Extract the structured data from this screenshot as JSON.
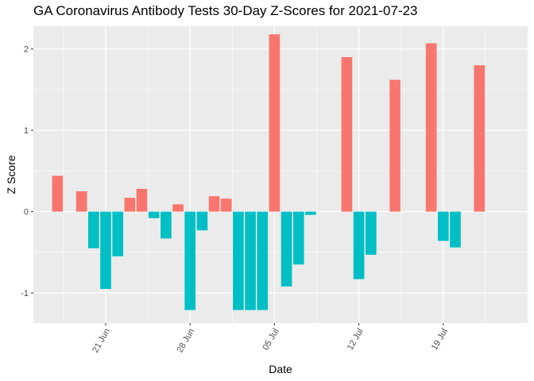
{
  "chart_data": {
    "type": "bar",
    "title": "GA Coronavirus Antibody Tests 30-Day Z-Scores for 2021-07-23",
    "xlabel": "Date",
    "ylabel": "Z Score",
    "x_type": "date",
    "xlim": [
      "2021-06-15",
      "2021-07-26"
    ],
    "ylim": [
      -1.37,
      2.28
    ],
    "grid": true,
    "legend": "none",
    "x_ticks": [
      {
        "value": "2021-06-21",
        "label": "21 Jun"
      },
      {
        "value": "2021-06-28",
        "label": "28 Jun"
      },
      {
        "value": "2021-07-05",
        "label": "05 Jul"
      },
      {
        "value": "2021-07-12",
        "label": "12 Jul"
      },
      {
        "value": "2021-07-19",
        "label": "19 Jul"
      }
    ],
    "y_ticks": [
      -1,
      0,
      1,
      2
    ],
    "colors": {
      "positive": "#F8766D",
      "negative": "#00BFC4"
    },
    "points": [
      {
        "date": "2021-06-17",
        "z": 0.44
      },
      {
        "date": "2021-06-19",
        "z": 0.25
      },
      {
        "date": "2021-06-20",
        "z": -0.45
      },
      {
        "date": "2021-06-21",
        "z": -0.95
      },
      {
        "date": "2021-06-22",
        "z": -0.55
      },
      {
        "date": "2021-06-23",
        "z": 0.17
      },
      {
        "date": "2021-06-24",
        "z": 0.28
      },
      {
        "date": "2021-06-25",
        "z": -0.08
      },
      {
        "date": "2021-06-26",
        "z": -0.33
      },
      {
        "date": "2021-06-27",
        "z": 0.09
      },
      {
        "date": "2021-06-28",
        "z": -1.21
      },
      {
        "date": "2021-06-29",
        "z": -0.23
      },
      {
        "date": "2021-06-30",
        "z": 0.19
      },
      {
        "date": "2021-07-01",
        "z": 0.16
      },
      {
        "date": "2021-07-02",
        "z": -1.21
      },
      {
        "date": "2021-07-03",
        "z": -1.21
      },
      {
        "date": "2021-07-04",
        "z": -1.21
      },
      {
        "date": "2021-07-05",
        "z": 2.18
      },
      {
        "date": "2021-07-06",
        "z": -0.92
      },
      {
        "date": "2021-07-07",
        "z": -0.65
      },
      {
        "date": "2021-07-08",
        "z": -0.04
      },
      {
        "date": "2021-07-11",
        "z": 1.9
      },
      {
        "date": "2021-07-12",
        "z": -0.83
      },
      {
        "date": "2021-07-13",
        "z": -0.53
      },
      {
        "date": "2021-07-15",
        "z": 1.62
      },
      {
        "date": "2021-07-18",
        "z": 2.07
      },
      {
        "date": "2021-07-19",
        "z": -0.36
      },
      {
        "date": "2021-07-20",
        "z": -0.44
      },
      {
        "date": "2021-07-22",
        "z": 1.8
      }
    ]
  }
}
